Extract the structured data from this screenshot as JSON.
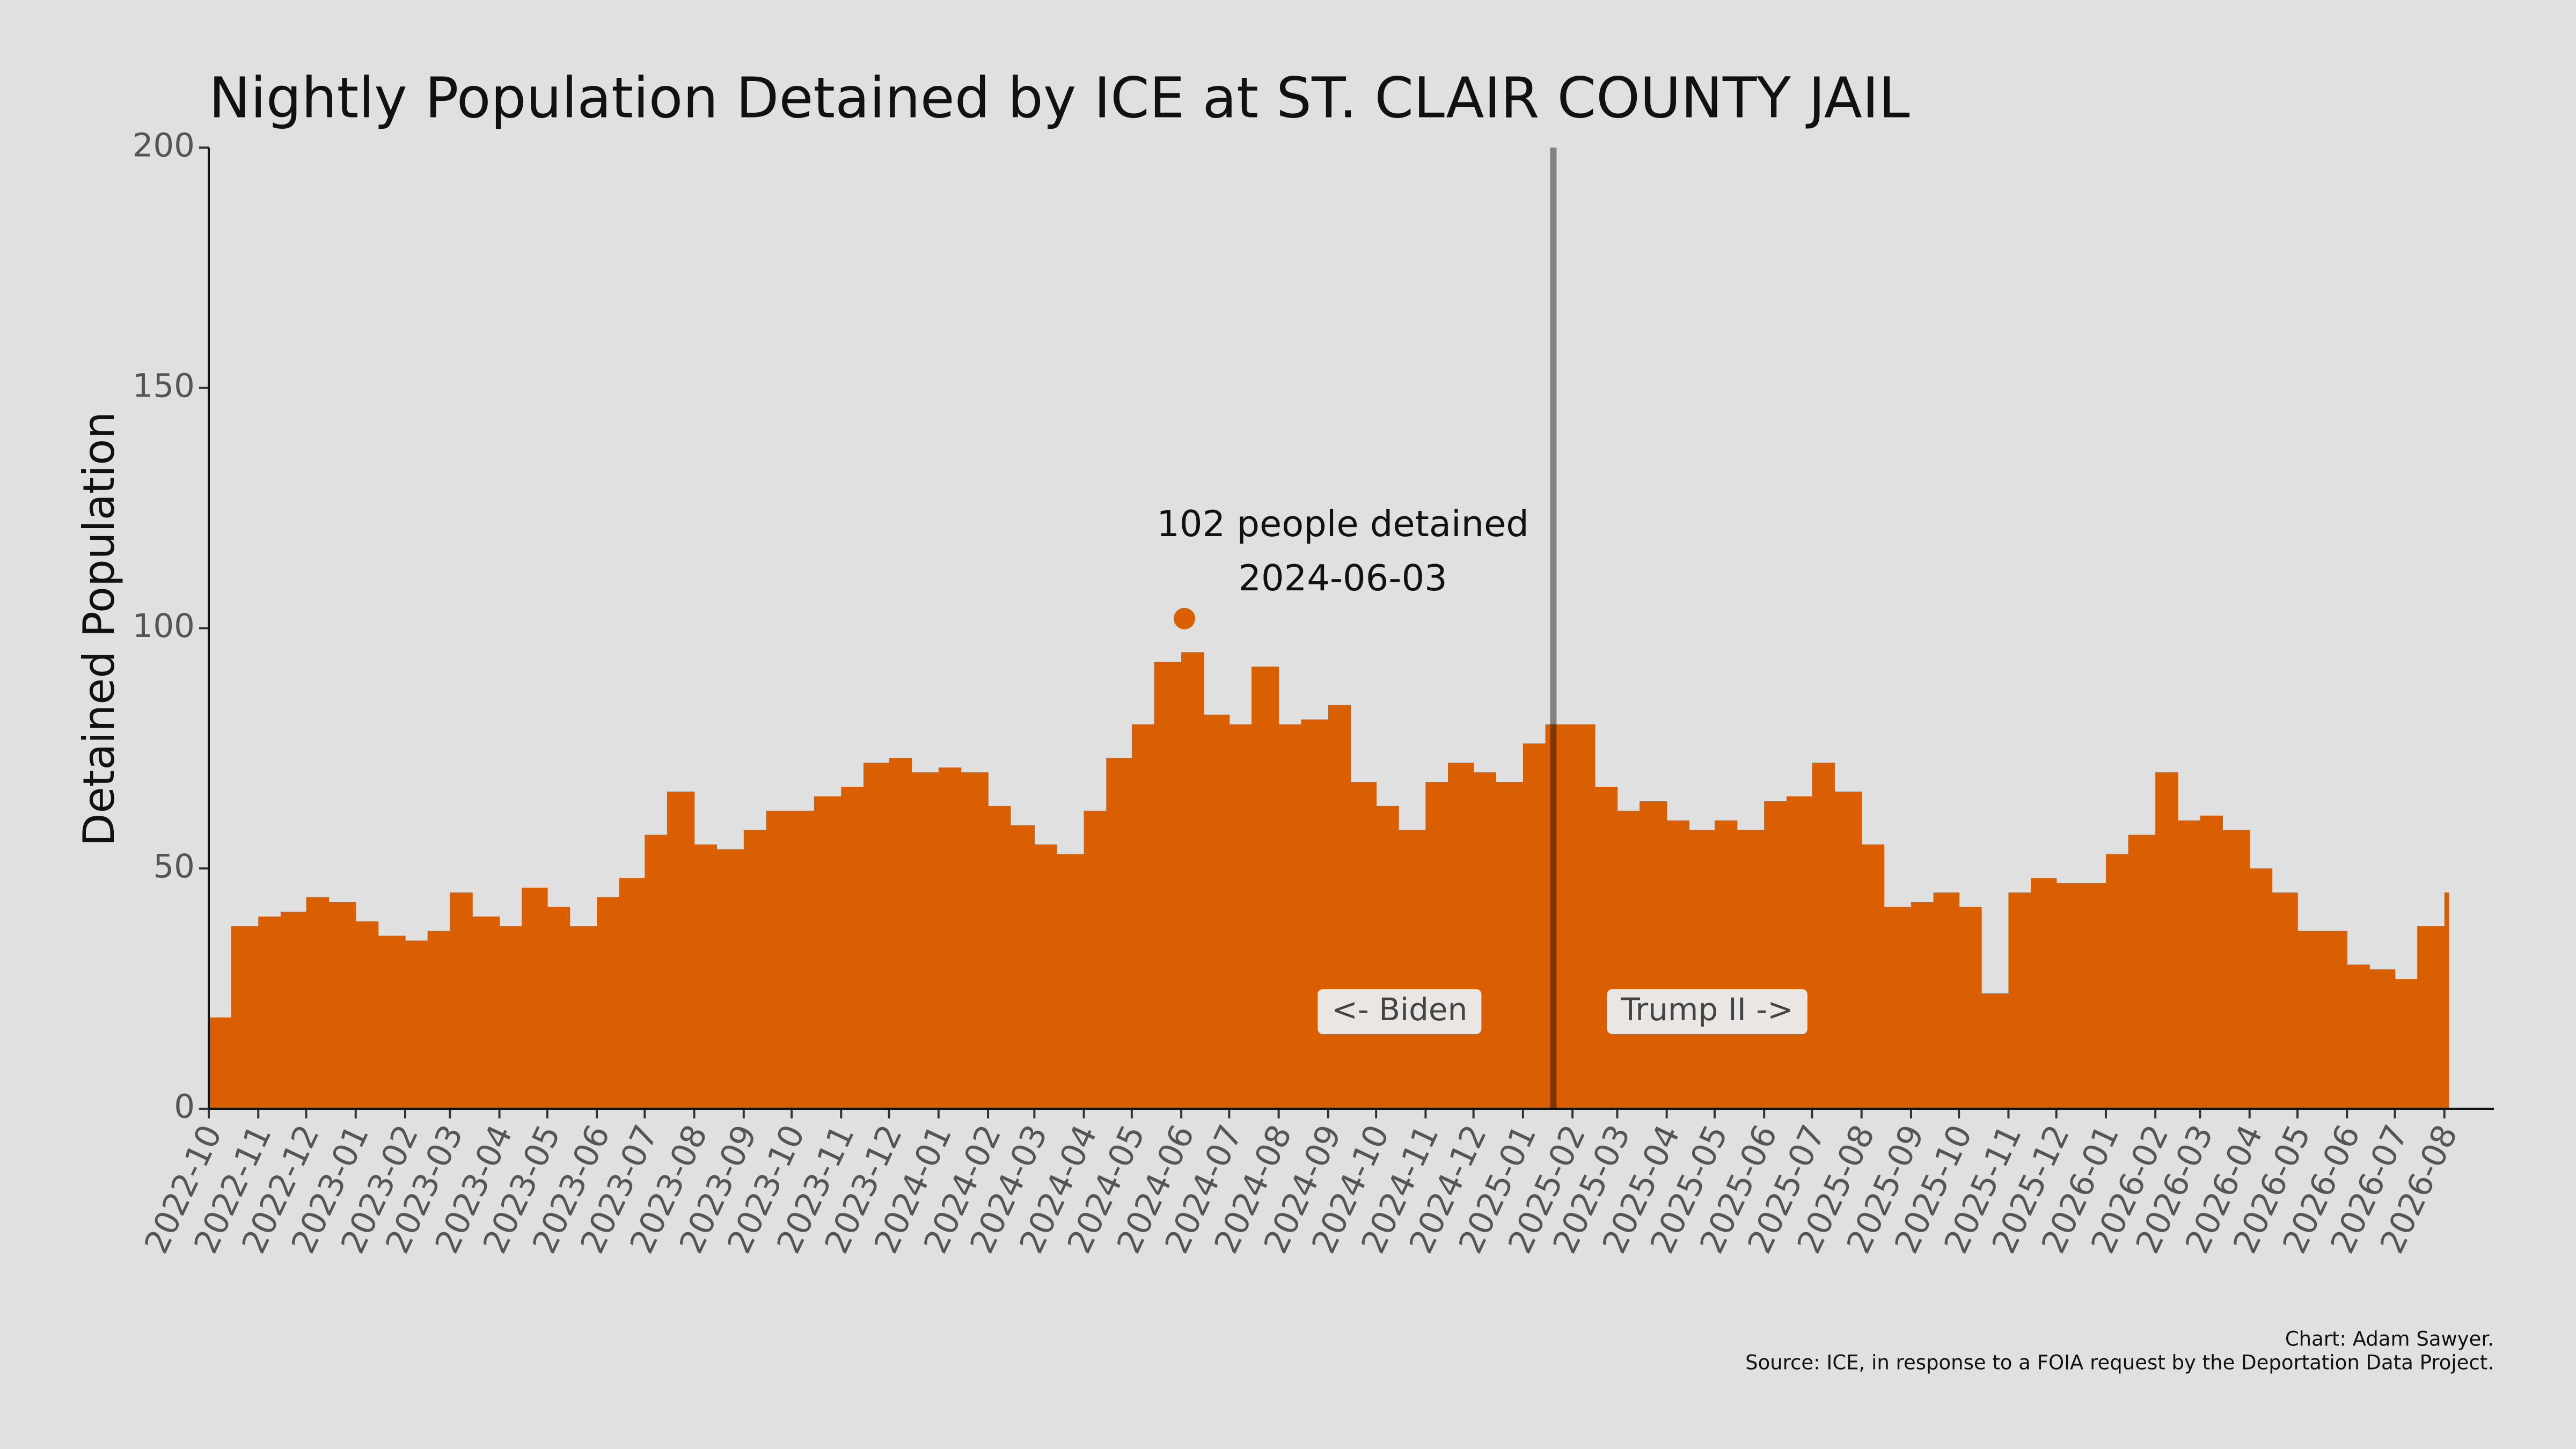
{
  "chart_data": {
    "type": "bar",
    "title": "Nightly Population Detained by ICE at ST. CLAIR COUNTY JAIL",
    "y_label": "Detained Population",
    "color": "#da5f02",
    "grid": false,
    "x": [
      "2022-10-01",
      "2022-10-15",
      "2022-11-01",
      "2022-11-15",
      "2022-12-01",
      "2022-12-15",
      "2023-01-01",
      "2023-01-15",
      "2023-02-01",
      "2023-02-15",
      "2023-03-01",
      "2023-03-15",
      "2023-04-01",
      "2023-04-15",
      "2023-05-01",
      "2023-05-15",
      "2023-06-01",
      "2023-06-15",
      "2023-07-01",
      "2023-07-15",
      "2023-08-01",
      "2023-08-15",
      "2023-09-01",
      "2023-09-15",
      "2023-10-01",
      "2023-10-15",
      "2023-11-01",
      "2023-11-15",
      "2023-12-01",
      "2023-12-15",
      "2024-01-01",
      "2024-01-15",
      "2024-02-01",
      "2024-02-15",
      "2024-03-01",
      "2024-03-15",
      "2024-04-01",
      "2024-04-15",
      "2024-05-01",
      "2024-05-15",
      "2024-06-01",
      "2024-06-15",
      "2024-07-01",
      "2024-07-15",
      "2024-08-01",
      "2024-08-15",
      "2024-09-01",
      "2024-09-15",
      "2024-10-01",
      "2024-10-15",
      "2024-11-01",
      "2024-11-15",
      "2024-12-01",
      "2024-12-15",
      "2025-01-01",
      "2025-01-15",
      "2025-02-01",
      "2025-02-15",
      "2025-03-01",
      "2025-03-15",
      "2025-04-01",
      "2025-04-15",
      "2025-05-01",
      "2025-05-15",
      "2025-06-01",
      "2025-06-15",
      "2025-07-01",
      "2025-07-15",
      "2025-08-01",
      "2025-08-15",
      "2025-09-01",
      "2025-09-15",
      "2025-10-01",
      "2025-10-15",
      "2025-11-01",
      "2025-11-15",
      "2025-12-01",
      "2025-12-15",
      "2026-01-01",
      "2026-01-15",
      "2026-02-01",
      "2026-02-15",
      "2026-03-01",
      "2026-03-15",
      "2026-04-01",
      "2026-04-15",
      "2026-05-01",
      "2026-05-15",
      "2026-06-01",
      "2026-06-15",
      "2026-07-01",
      "2026-07-15",
      "2026-08-01"
    ],
    "values": [
      19,
      38,
      40,
      41,
      44,
      43,
      39,
      36,
      35,
      37,
      45,
      40,
      38,
      46,
      42,
      38,
      44,
      48,
      57,
      66,
      55,
      54,
      58,
      62,
      62,
      65,
      67,
      72,
      73,
      70,
      71,
      70,
      63,
      59,
      55,
      53,
      62,
      73,
      80,
      93,
      95,
      82,
      80,
      92,
      80,
      81,
      84,
      68,
      63,
      58,
      68,
      72,
      70,
      68,
      76,
      80,
      80,
      67,
      62,
      64,
      60,
      58,
      60,
      58,
      64,
      65,
      72,
      66,
      55,
      42,
      43,
      45,
      42,
      24,
      45,
      48,
      47,
      47,
      53,
      57,
      70,
      60,
      61,
      58,
      50,
      45,
      37,
      37,
      30,
      29,
      27,
      38,
      45
    ],
    "xlim": [
      "2022-10",
      "2026-09"
    ],
    "xticks": [
      "2022-10",
      "2022-11",
      "2022-12",
      "2023-01",
      "2023-02",
      "2023-03",
      "2023-04",
      "2023-05",
      "2023-06",
      "2023-07",
      "2023-08",
      "2023-09",
      "2023-10",
      "2023-11",
      "2023-12",
      "2024-01",
      "2024-02",
      "2024-03",
      "2024-04",
      "2024-05",
      "2024-06",
      "2024-07",
      "2024-08",
      "2024-09",
      "2024-10",
      "2024-11",
      "2024-12",
      "2025-01",
      "2025-02",
      "2025-03",
      "2025-04",
      "2025-05",
      "2025-06",
      "2025-07",
      "2025-08",
      "2025-09",
      "2025-10",
      "2025-11",
      "2025-12",
      "2026-01",
      "2026-02",
      "2026-03",
      "2026-04",
      "2026-05",
      "2026-06",
      "2026-07",
      "2026-08"
    ],
    "ylim": [
      0,
      200
    ],
    "yticks": [
      0,
      50,
      100,
      150,
      200
    ],
    "annotation": {
      "text": "102 people detained",
      "date": "2024-06-03",
      "value": 102
    },
    "divider": {
      "date": "2025-01-20",
      "left_label": "<- Biden",
      "right_label": "Trump II ->"
    },
    "credits": [
      "Chart: Adam Sawyer.",
      "Source: ICE, in response to a FOIA request by the Deportation Data Project."
    ]
  }
}
